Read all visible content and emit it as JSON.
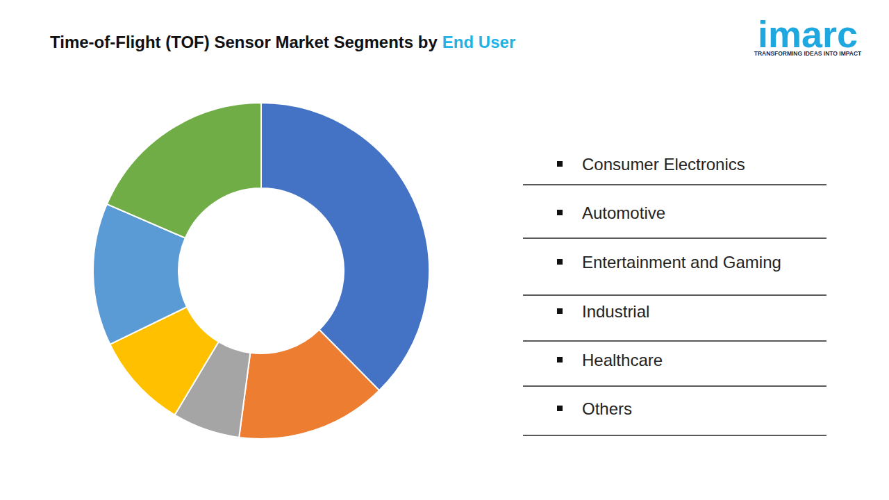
{
  "chart_data": {
    "type": "donut",
    "title": [
      "Time-of-Flight (TOF) Sensor Market Segments by",
      "End User"
    ],
    "categories": [
      "Consumer Electronics",
      "Automotive",
      "Entertainment and Gaming",
      "Industrial",
      "Healthcare",
      "Others"
    ],
    "values": [
      37.6,
      14.5,
      6.5,
      9.2,
      13.7,
      18.5
    ],
    "colors": [
      "#4472c4",
      "#ed7d31",
      "#a5a5a5",
      "#ffc000",
      "#5b9bd5",
      "#70ad47"
    ],
    "legend": "right"
  },
  "logo": {
    "name": "imarc",
    "tagline": "TRANSFORMING IDEAS INTO IMPACT"
  }
}
